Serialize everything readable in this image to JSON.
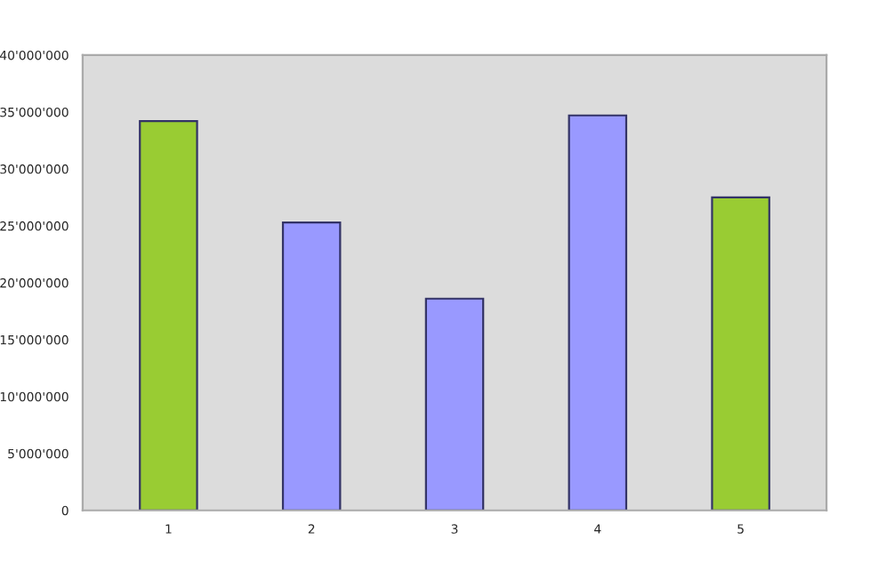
{
  "chart_data": {
    "type": "bar",
    "categories": [
      "1",
      "2",
      "3",
      "4",
      "5"
    ],
    "values": [
      34200000,
      25300000,
      18600000,
      34700000,
      27500000
    ],
    "colors": [
      "#99cc33",
      "#9999ff",
      "#9999ff",
      "#9999ff",
      "#99cc33"
    ],
    "ylim": [
      0,
      40000000
    ],
    "yticks": [
      0,
      {
        "value": 5000000,
        "label": "5'000'000"
      },
      {
        "value": 10000000,
        "label": "10'000'000"
      },
      {
        "value": 15000000,
        "label": "15'000'000"
      },
      {
        "value": 20000000,
        "label": "20'000'000"
      },
      {
        "value": 25000000,
        "label": "25'000'000"
      },
      {
        "value": 30000000,
        "label": "30'000'000"
      },
      {
        "value": 35000000,
        "label": "35'000'000"
      },
      {
        "value": 40000000,
        "label": "40'000'000"
      }
    ],
    "grid": false,
    "legend": false
  }
}
